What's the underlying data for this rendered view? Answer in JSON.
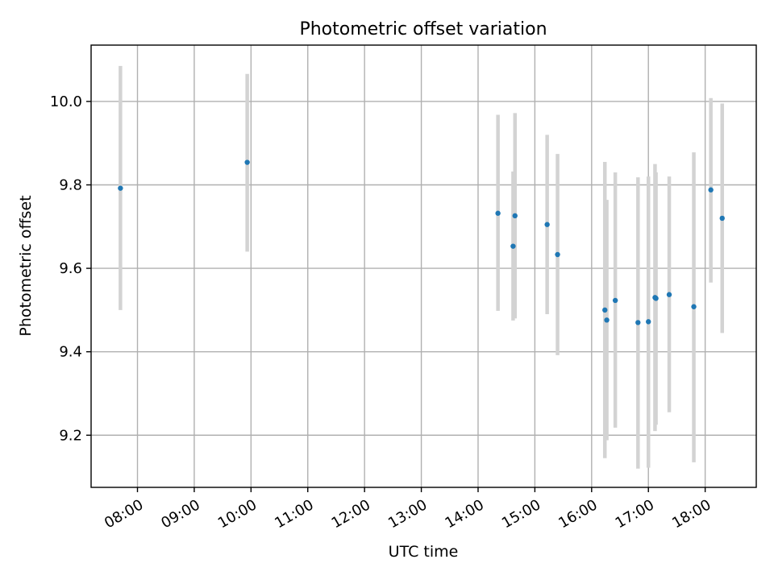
{
  "chart_data": {
    "type": "scatter",
    "title": "Photometric offset variation",
    "xlabel": "UTC time",
    "ylabel": "Photometric offset",
    "xlim": [
      "07:11",
      "18:54"
    ],
    "ylim": [
      9.075,
      10.135
    ],
    "x_ticks": [
      "08:00",
      "09:00",
      "10:00",
      "11:00",
      "12:00",
      "13:00",
      "14:00",
      "15:00",
      "16:00",
      "17:00",
      "18:00"
    ],
    "y_ticks": [
      9.2,
      9.4,
      9.6,
      9.8,
      10.0
    ],
    "y_tick_labels": [
      "9.2",
      "9.4",
      "9.6",
      "9.8",
      "10.0"
    ],
    "grid": true,
    "colors": {
      "points": "#1f77b4",
      "error_bars": "#d3d3d3"
    },
    "series": [
      {
        "points": [
          {
            "x": "07:42",
            "y": 9.792,
            "y_low": 9.5,
            "y_high": 10.085
          },
          {
            "x": "09:56",
            "y": 9.854,
            "y_low": 9.64,
            "y_high": 10.066
          },
          {
            "x": "14:21",
            "y": 9.732,
            "y_low": 9.498,
            "y_high": 9.968
          },
          {
            "x": "14:37",
            "y": 9.653,
            "y_low": 9.475,
            "y_high": 9.832
          },
          {
            "x": "14:39",
            "y": 9.726,
            "y_low": 9.48,
            "y_high": 9.972
          },
          {
            "x": "15:13",
            "y": 9.705,
            "y_low": 9.49,
            "y_high": 9.92
          },
          {
            "x": "15:24",
            "y": 9.633,
            "y_low": 9.392,
            "y_high": 9.874
          },
          {
            "x": "16:14",
            "y": 9.5,
            "y_low": 9.145,
            "y_high": 9.855
          },
          {
            "x": "16:16",
            "y": 9.476,
            "y_low": 9.188,
            "y_high": 9.764
          },
          {
            "x": "16:25",
            "y": 9.523,
            "y_low": 9.218,
            "y_high": 9.83
          },
          {
            "x": "16:49",
            "y": 9.47,
            "y_low": 9.12,
            "y_high": 9.818
          },
          {
            "x": "17:00",
            "y": 9.472,
            "y_low": 9.122,
            "y_high": 9.82
          },
          {
            "x": "17:07",
            "y": 9.53,
            "y_low": 9.21,
            "y_high": 9.85
          },
          {
            "x": "17:08",
            "y": 9.528,
            "y_low": 9.225,
            "y_high": 9.83
          },
          {
            "x": "17:22",
            "y": 9.537,
            "y_low": 9.255,
            "y_high": 9.82
          },
          {
            "x": "17:48",
            "y": 9.508,
            "y_low": 9.135,
            "y_high": 9.878
          },
          {
            "x": "18:06",
            "y": 9.788,
            "y_low": 9.566,
            "y_high": 10.008
          },
          {
            "x": "18:18",
            "y": 9.72,
            "y_low": 9.445,
            "y_high": 9.995
          }
        ]
      }
    ]
  }
}
